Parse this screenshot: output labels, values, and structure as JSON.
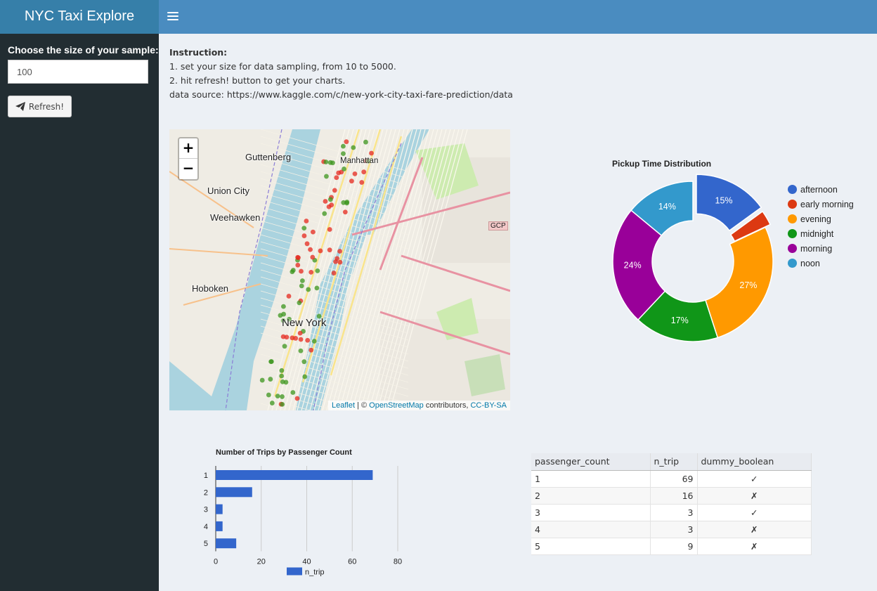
{
  "header": {
    "title": "NYC Taxi Explore"
  },
  "sidebar": {
    "label": "Choose the size of your sample:",
    "sample_value": "100",
    "refresh_label": "Refresh!"
  },
  "instructions": {
    "heading": "Instruction:",
    "line1": "1. set your size for data sampling, from 10 to 5000.",
    "line2": "2. hit refresh! button to get your charts.",
    "line3": "data source: https://www.kaggle.com/c/new-york-city-taxi-fare-prediction/data"
  },
  "map": {
    "zoom_in": "+",
    "zoom_out": "−",
    "places": {
      "guttenberg": "Guttenberg",
      "union_city": "Union City",
      "weehawken": "Weehawken",
      "hoboken": "Hoboken",
      "manhattan": "Manhattan",
      "new_york": "New York",
      "gcp": "GCP"
    },
    "attribution": {
      "leaflet": "Leaflet",
      "separator": " | © ",
      "osm": "OpenStreetMap",
      "contributors": " contributors, ",
      "license": "CC-BY-SA"
    }
  },
  "donut_chart": {
    "title": "Pickup Time Distribution",
    "slices": [
      {
        "name": "afternoon",
        "value": 15,
        "label": "15%",
        "color": "#3366cc"
      },
      {
        "name": "early morning",
        "value": 3,
        "label": "",
        "color": "#dc3912"
      },
      {
        "name": "evening",
        "value": 27,
        "label": "27%",
        "color": "#ff9900"
      },
      {
        "name": "midnight",
        "value": 17,
        "label": "17%",
        "color": "#109618"
      },
      {
        "name": "morning",
        "value": 24,
        "label": "24%",
        "color": "#990099"
      },
      {
        "name": "noon",
        "value": 14,
        "label": "14%",
        "color": "#3399cc"
      }
    ]
  },
  "chart_data": {
    "type": "bar",
    "title": "Number of Trips by Passenger Count",
    "categories": [
      "1",
      "2",
      "3",
      "4",
      "5"
    ],
    "series": [
      {
        "name": "n_trip",
        "values": [
          69,
          16,
          3,
          3,
          9
        ],
        "color": "#3366cc"
      }
    ],
    "xlim": [
      0,
      80
    ],
    "xticks": [
      "0",
      "20",
      "40",
      "60",
      "80"
    ],
    "orientation": "horizontal",
    "legend": "bottom"
  },
  "table": {
    "columns": [
      "passenger_count",
      "n_trip",
      "dummy_boolean"
    ],
    "rows": [
      [
        "1",
        "69",
        "✓"
      ],
      [
        "2",
        "16",
        "✗"
      ],
      [
        "3",
        "3",
        "✓"
      ],
      [
        "4",
        "3",
        "✗"
      ],
      [
        "5",
        "9",
        "✗"
      ]
    ]
  }
}
